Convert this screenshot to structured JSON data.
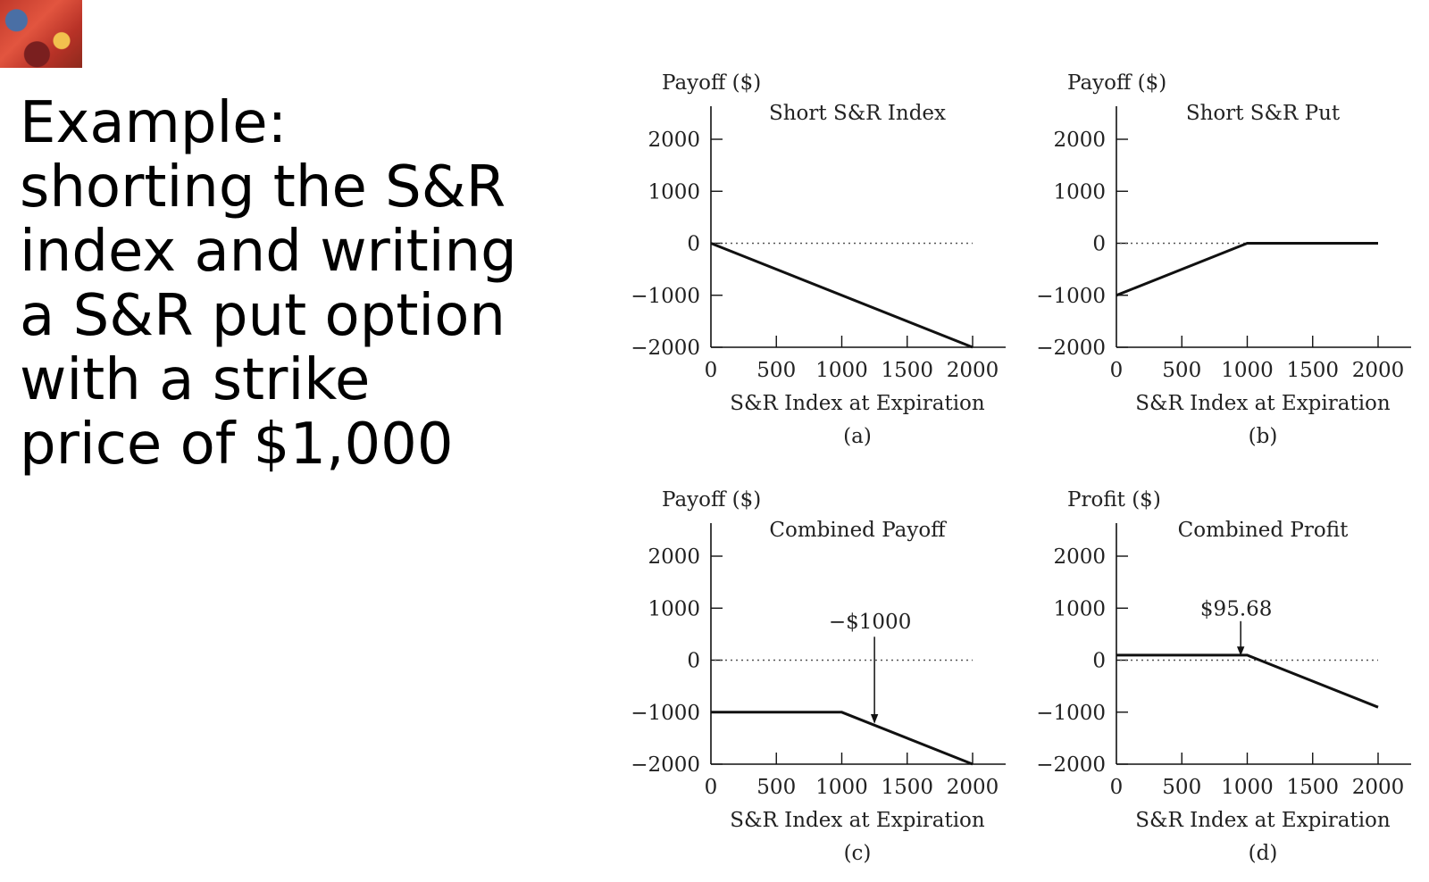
{
  "slide": {
    "text_lines": [
      "Example:",
      "shorting the S&R",
      "index and writing",
      "a S&R put option",
      "with a strike",
      "price of $1,000"
    ]
  },
  "chart_data": [
    {
      "type": "line",
      "panel_label": "(a)",
      "title": "Short S&R Index",
      "ylabel": "Payoff ($)",
      "xlabel": "S&R Index at Expiration",
      "xlim": [
        0,
        2000
      ],
      "ylim": [
        -2000,
        2000
      ],
      "x_ticks": [
        0,
        500,
        1000,
        1500,
        2000
      ],
      "y_ticks": [
        2000,
        1000,
        0,
        -1000,
        -2000
      ],
      "zero_line": "dotted",
      "series": [
        {
          "x": [
            0,
            2000
          ],
          "y": [
            0,
            -2000
          ]
        }
      ],
      "annotations": []
    },
    {
      "type": "line",
      "panel_label": "(b)",
      "title": "Short S&R Put",
      "ylabel": "Payoff ($)",
      "xlabel": "S&R Index at Expiration",
      "xlim": [
        0,
        2000
      ],
      "ylim": [
        -2000,
        2000
      ],
      "x_ticks": [
        0,
        500,
        1000,
        1500,
        2000
      ],
      "y_ticks": [
        2000,
        1000,
        0,
        -1000,
        -2000
      ],
      "zero_line": "dotted",
      "series": [
        {
          "x": [
            0,
            1000,
            2000
          ],
          "y": [
            -1000,
            0,
            0
          ]
        }
      ],
      "annotations": []
    },
    {
      "type": "line",
      "panel_label": "(c)",
      "title": "Combined Payoff",
      "ylabel": "Payoff ($)",
      "xlabel": "S&R Index at Expiration",
      "xlim": [
        0,
        2000
      ],
      "ylim": [
        -2000,
        2000
      ],
      "x_ticks": [
        0,
        500,
        1000,
        1500,
        2000
      ],
      "y_ticks": [
        2000,
        1000,
        0,
        -1000,
        -2000
      ],
      "zero_line": "dotted",
      "series": [
        {
          "x": [
            0,
            1000,
            2000
          ],
          "y": [
            -1000,
            -1000,
            -2000
          ]
        }
      ],
      "annotations": [
        {
          "text": "-$1000",
          "x": 1250,
          "text_y": 750,
          "arrow_from_y": 450,
          "arrow_to_y": -1200
        }
      ]
    },
    {
      "type": "line",
      "panel_label": "(d)",
      "title": "Combined Profit",
      "ylabel": "Profit ($)",
      "xlabel": "S&R Index at Expiration",
      "xlim": [
        0,
        2000
      ],
      "ylim": [
        -2000,
        2000
      ],
      "x_ticks": [
        0,
        500,
        1000,
        1500,
        2000
      ],
      "y_ticks": [
        2000,
        1000,
        0,
        -1000,
        -2000
      ],
      "zero_line": "dotted",
      "series": [
        {
          "x": [
            0,
            1000,
            2000
          ],
          "y": [
            95.68,
            95.68,
            -904.32
          ]
        }
      ],
      "annotations": [
        {
          "text": "$95.68",
          "x": 950,
          "text_y": 1000,
          "arrow_from_y": 750,
          "arrow_to_y": 100
        }
      ]
    }
  ]
}
